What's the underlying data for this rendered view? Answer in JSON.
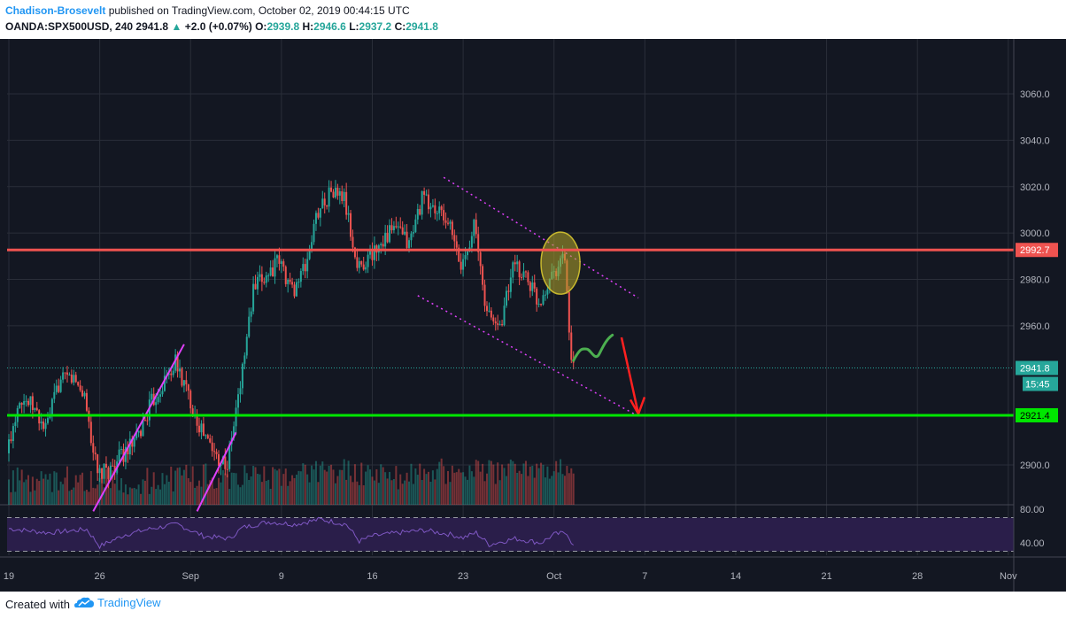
{
  "header": {
    "author": "Chadison-Brosevelt",
    "published_text": "published on TradingView.com, October 02, 2019 00:44:15 UTC",
    "symbol": "OANDA:SPX500USD, 240",
    "last": "2941.8",
    "change": "+2.0 (+0.07%)",
    "o_label": "O:",
    "o": "2939.8",
    "h_label": "H:",
    "h": "2946.6",
    "l_label": "L:",
    "l": "2937.2",
    "c_label": "C:",
    "c": "2941.8"
  },
  "footer": {
    "created_with": "Created with",
    "brand": "TradingView"
  },
  "colors": {
    "background": "#131722",
    "grid": "#2a2e39",
    "up": "#26a69a",
    "down": "#ef5350",
    "resistance": "#ef5350",
    "support": "#00e600",
    "channel": "#e040fb",
    "rsi_line": "#7e57c2",
    "rsi_band": "#2a1e4a",
    "highlight": "#b5a52a",
    "arrow": "#ff2020",
    "projection": "#4caf50"
  },
  "chart_data": {
    "type": "candlestick",
    "symbol": "OANDA:SPX500USD",
    "interval": "240",
    "ylim": [
      2880,
      3075
    ],
    "y_ticks": [
      "3060.0",
      "3040.0",
      "3020.0",
      "3000.0",
      "2980.0",
      "2960.0",
      "2900.0"
    ],
    "y_tick_values": [
      3060,
      3040,
      3020,
      3000,
      2980,
      2960,
      2900
    ],
    "x_ticks": [
      "19",
      "26",
      "Sep",
      "9",
      "16",
      "23",
      "Oct",
      "7",
      "14",
      "21",
      "28",
      "Nov"
    ],
    "x_tick_days": [
      0,
      7,
      14,
      21,
      28,
      35,
      42,
      49,
      56,
      63,
      70,
      77
    ],
    "price_labels": [
      {
        "label": "2992.7",
        "value": 2992.7,
        "kind": "resistance"
      },
      {
        "label": "2941.8",
        "value": 2941.8,
        "kind": "last"
      },
      {
        "label": "2921.4",
        "value": 2921.4,
        "kind": "support"
      }
    ],
    "countdown": "15:45",
    "horizontal_lines": [
      {
        "name": "resistance",
        "value": 2992.7
      },
      {
        "name": "support",
        "value": 2921.4
      }
    ],
    "close_path": [
      [
        0,
        2905
      ],
      [
        1,
        2930
      ],
      [
        2,
        2925
      ],
      [
        3,
        2915
      ],
      [
        4,
        2935
      ],
      [
        5,
        2938
      ],
      [
        6,
        2930
      ],
      [
        7,
        2895
      ],
      [
        8,
        2898
      ],
      [
        9,
        2905
      ],
      [
        10,
        2910
      ],
      [
        11,
        2925
      ],
      [
        12,
        2935
      ],
      [
        13,
        2944
      ],
      [
        14,
        2930
      ],
      [
        15,
        2915
      ],
      [
        16,
        2905
      ],
      [
        17,
        2900
      ],
      [
        18,
        2935
      ],
      [
        19,
        2975
      ],
      [
        20,
        2982
      ],
      [
        21,
        2988
      ],
      [
        22,
        2975
      ],
      [
        23,
        2985
      ],
      [
        24,
        3010
      ],
      [
        25,
        3018
      ],
      [
        26,
        3015
      ],
      [
        27,
        2985
      ],
      [
        28,
        2990
      ],
      [
        29,
        2998
      ],
      [
        30,
        3002
      ],
      [
        31,
        2995
      ],
      [
        32,
        3015
      ],
      [
        33,
        3010
      ],
      [
        34,
        3005
      ],
      [
        35,
        2985
      ],
      [
        36,
        3004
      ],
      [
        37,
        2965
      ],
      [
        38,
        2960
      ],
      [
        39,
        2985
      ],
      [
        40,
        2982
      ],
      [
        41,
        2970
      ],
      [
        42,
        2983
      ],
      [
        43,
        2990
      ],
      [
        43.5,
        2942
      ]
    ],
    "volume_path": [
      [
        0,
        0.25
      ],
      [
        5,
        0.3
      ],
      [
        10,
        0.22
      ],
      [
        15,
        0.35
      ],
      [
        20,
        0.3
      ],
      [
        25,
        0.45
      ],
      [
        30,
        0.35
      ],
      [
        35,
        0.5
      ],
      [
        40,
        0.4
      ],
      [
        43.5,
        0.55
      ]
    ],
    "rsi": {
      "ylim": [
        30,
        90
      ],
      "ticks": [
        "80.00",
        "40.00"
      ],
      "tick_values": [
        80,
        40
      ],
      "bands": [
        70,
        30
      ],
      "path": [
        [
          0,
          57
        ],
        [
          3,
          52
        ],
        [
          6,
          56
        ],
        [
          7,
          36
        ],
        [
          9,
          50
        ],
        [
          11,
          57
        ],
        [
          13,
          62
        ],
        [
          15,
          48
        ],
        [
          17,
          45
        ],
        [
          18,
          58
        ],
        [
          20,
          65
        ],
        [
          22,
          62
        ],
        [
          24,
          68
        ],
        [
          26,
          62
        ],
        [
          27,
          42
        ],
        [
          28,
          48
        ],
        [
          30,
          52
        ],
        [
          32,
          55
        ],
        [
          34,
          50
        ],
        [
          35,
          46
        ],
        [
          36,
          52
        ],
        [
          37,
          38
        ],
        [
          39,
          45
        ],
        [
          41,
          40
        ],
        [
          42,
          50
        ],
        [
          43,
          52
        ],
        [
          43.5,
          36
        ]
      ]
    },
    "drawings": {
      "channel_upper": [
        [
          33.5,
          3024
        ],
        [
          48.5,
          2972
        ]
      ],
      "channel_lower": [
        [
          31.5,
          2973
        ],
        [
          48.5,
          2921
        ]
      ],
      "rising_1": [
        [
          6.5,
          2880
        ],
        [
          13.5,
          2952
        ]
      ],
      "rising_2": [
        [
          14.5,
          2880
        ],
        [
          17.5,
          2914
        ]
      ],
      "ellipse_center": [
        42.5,
        2987
      ],
      "projection_path": [
        [
          43.5,
          2945
        ],
        [
          44.5,
          2950
        ],
        [
          45.5,
          2948
        ],
        [
          46.5,
          2956
        ]
      ],
      "arrow": [
        [
          47.2,
          2955
        ],
        [
          48.5,
          2922
        ]
      ]
    }
  }
}
